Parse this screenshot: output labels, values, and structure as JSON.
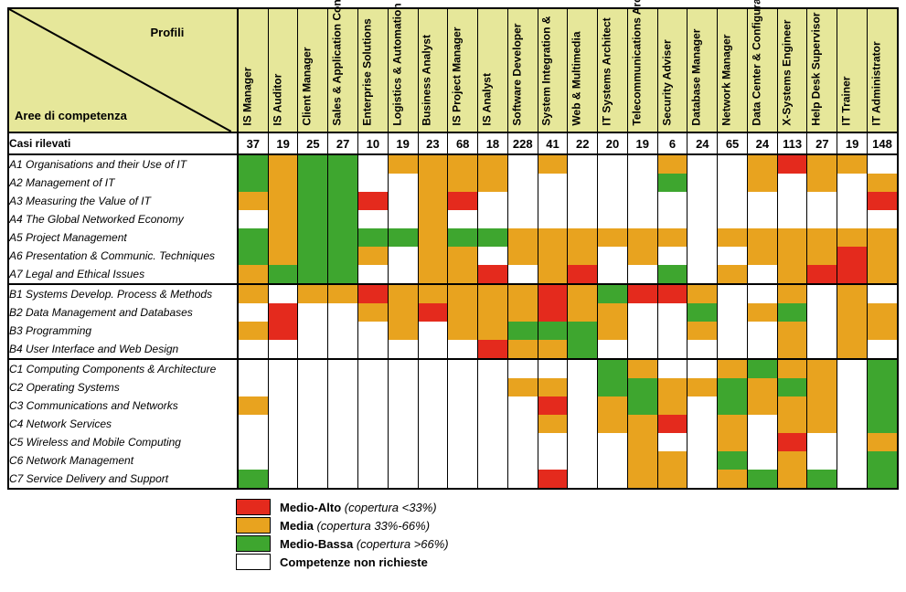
{
  "colors": {
    "header_bg": "#e6e79a",
    "high": "#e42a1d",
    "mid": "#e8a31f",
    "low": "#3ea62f",
    "none": "#ffffff",
    "border": "#000000"
  },
  "corner": {
    "top": "Profili",
    "bottom": "Aree di competenza"
  },
  "counts_label": "Casi rilevati",
  "profiles": [
    {
      "label": "IS Manager",
      "count": 37
    },
    {
      "label": "IS Auditor",
      "count": 19
    },
    {
      "label": "Client Manager",
      "count": 25
    },
    {
      "label": "Sales & Application Cons.",
      "count": 27
    },
    {
      "label": "Enterprise Solutions",
      "count": 10
    },
    {
      "label": "Logistics & Automation",
      "count": 19
    },
    {
      "label": "Business Analyst",
      "count": 23
    },
    {
      "label": "IS Project Manager",
      "count": 68
    },
    {
      "label": "IS Analyst",
      "count": 18
    },
    {
      "label": "Software Developer",
      "count": 228
    },
    {
      "label": "System Integration & ",
      "count": 41
    },
    {
      "label": "Web & Multimedia",
      "count": 22
    },
    {
      "label": "IT Systems Architect",
      "count": 20
    },
    {
      "label": "Telecommunications Architect",
      "count": 19
    },
    {
      "label": "Security Adviser",
      "count": 6
    },
    {
      "label": "Database Manager",
      "count": 24
    },
    {
      "label": "Network Manager",
      "count": 65
    },
    {
      "label": "Data Center & Configuration",
      "count": 24
    },
    {
      "label": "X-Systems Engineer",
      "count": 113
    },
    {
      "label": "Help Desk Supervisor",
      "count": 27
    },
    {
      "label": "IT Trainer",
      "count": 19
    },
    {
      "label": "IT Administrator",
      "count": 148
    }
  ],
  "sections": [
    {
      "rows": [
        {
          "label": "A1 Organisations and their Use of IT",
          "cells": [
            "L",
            "M",
            "L",
            "L",
            "",
            "M",
            "M",
            "M",
            "M",
            "",
            "M",
            "",
            "",
            "",
            "M",
            "",
            "",
            "M",
            "H",
            "M",
            "M",
            ""
          ]
        },
        {
          "label": "A2 Management of IT",
          "cells": [
            "L",
            "M",
            "L",
            "L",
            "",
            "",
            "M",
            "M",
            "M",
            "",
            "",
            "",
            "",
            "",
            "L",
            "",
            "",
            "M",
            "",
            "M",
            "",
            "M"
          ]
        },
        {
          "label": "A3 Measuring the Value of IT",
          "cells": [
            "M",
            "M",
            "L",
            "L",
            "H",
            "",
            "M",
            "H",
            "",
            "",
            "",
            "",
            "",
            "",
            "",
            "",
            "",
            "",
            "",
            "",
            "",
            "H"
          ]
        },
        {
          "label": "A4 The Global Networked Economy",
          "cells": [
            "",
            "M",
            "L",
            "L",
            "",
            "",
            "M",
            "",
            "",
            "",
            "",
            "",
            "",
            "",
            "",
            "",
            "",
            "",
            "",
            "",
            "",
            ""
          ]
        },
        {
          "label": "A5 Project Management",
          "cells": [
            "L",
            "M",
            "L",
            "L",
            "L",
            "L",
            "M",
            "L",
            "L",
            "M",
            "M",
            "M",
            "M",
            "M",
            "M",
            "",
            "M",
            "M",
            "M",
            "M",
            "M",
            "M"
          ]
        },
        {
          "label": "A6 Presentation & Communic. Techniques",
          "cells": [
            "L",
            "M",
            "L",
            "L",
            "M",
            "",
            "M",
            "M",
            "",
            "M",
            "M",
            "M",
            "",
            "M",
            "",
            "",
            "",
            "M",
            "M",
            "M",
            "H",
            "M"
          ]
        },
        {
          "label": "A7 Legal and Ethical Issues",
          "cells": [
            "M",
            "L",
            "L",
            "L",
            "",
            "",
            "M",
            "M",
            "H",
            "",
            "M",
            "H",
            "",
            "",
            "L",
            "",
            "M",
            "",
            "M",
            "H",
            "H",
            "M"
          ]
        }
      ]
    },
    {
      "rows": [
        {
          "label": "B1 Systems Develop. Process & Methods",
          "cells": [
            "M",
            "",
            "M",
            "M",
            "H",
            "M",
            "M",
            "M",
            "M",
            "M",
            "H",
            "M",
            "L",
            "H",
            "H",
            "M",
            "",
            "",
            "M",
            "",
            "M",
            ""
          ]
        },
        {
          "label": "B2 Data Management and Databases",
          "cells": [
            "",
            "H",
            "",
            "",
            "M",
            "M",
            "H",
            "M",
            "M",
            "M",
            "H",
            "M",
            "M",
            "",
            "",
            "L",
            "",
            "M",
            "L",
            "",
            "M",
            "M"
          ]
        },
        {
          "label": "B3 Programming",
          "cells": [
            "M",
            "H",
            "",
            "",
            "",
            "M",
            "",
            "M",
            "M",
            "L",
            "L",
            "L",
            "M",
            "",
            "",
            "M",
            "",
            "",
            "M",
            "",
            "M",
            "M"
          ]
        },
        {
          "label": "B4 User Interface and Web Design",
          "cells": [
            "",
            "",
            "",
            "",
            "",
            "",
            "",
            "",
            "H",
            "M",
            "M",
            "L",
            "",
            "",
            "",
            "",
            "",
            "",
            "M",
            "",
            "M",
            ""
          ]
        }
      ]
    },
    {
      "rows": [
        {
          "label": "C1 Computing Components & Architecture",
          "cells": [
            "",
            "",
            "",
            "",
            "",
            "",
            "",
            "",
            "",
            "",
            "",
            "",
            "L",
            "M",
            "",
            "",
            "M",
            "L",
            "M",
            "M",
            "",
            "L"
          ]
        },
        {
          "label": "C2 Operating Systems",
          "cells": [
            "",
            "",
            "",
            "",
            "",
            "",
            "",
            "",
            "",
            "M",
            "M",
            "",
            "L",
            "L",
            "M",
            "M",
            "L",
            "M",
            "L",
            "M",
            "",
            "L"
          ]
        },
        {
          "label": "C3 Communications and Networks",
          "cells": [
            "M",
            "",
            "",
            "",
            "",
            "",
            "",
            "",
            "",
            "",
            "H",
            "",
            "M",
            "L",
            "M",
            "",
            "L",
            "M",
            "M",
            "M",
            "",
            "L"
          ]
        },
        {
          "label": "C4 Network Services",
          "cells": [
            "",
            "",
            "",
            "",
            "",
            "",
            "",
            "",
            "",
            "",
            "M",
            "",
            "M",
            "M",
            "H",
            "",
            "M",
            "",
            "M",
            "M",
            "",
            "L"
          ]
        },
        {
          "label": "C5 Wireless and Mobile Computing",
          "cells": [
            "",
            "",
            "",
            "",
            "",
            "",
            "",
            "",
            "",
            "",
            "",
            "",
            "",
            "M",
            "",
            "",
            "M",
            "",
            "H",
            "",
            "",
            "M"
          ]
        },
        {
          "label": "C6 Network Management",
          "cells": [
            "",
            "",
            "",
            "",
            "",
            "",
            "",
            "",
            "",
            "",
            "",
            "",
            "",
            "M",
            "M",
            "",
            "L",
            "",
            "M",
            "",
            "",
            "L"
          ]
        },
        {
          "label": "C7 Service Delivery and Support",
          "cells": [
            "L",
            "",
            "",
            "",
            "",
            "",
            "",
            "",
            "",
            "",
            "H",
            "",
            "",
            "M",
            "M",
            "",
            "M",
            "L",
            "M",
            "L",
            "",
            "L"
          ]
        }
      ]
    }
  ],
  "legend": [
    {
      "swatch": "high",
      "bold": "Medio-Alto",
      "italic": "(copertura <33%)"
    },
    {
      "swatch": "mid",
      "bold": "Media",
      "italic": "(copertura 33%-66%)"
    },
    {
      "swatch": "low",
      "bold": "Medio-Bassa",
      "italic": "(copertura >66%)"
    },
    {
      "swatch": "none",
      "bold": "Competenze non richieste",
      "italic": ""
    }
  ]
}
